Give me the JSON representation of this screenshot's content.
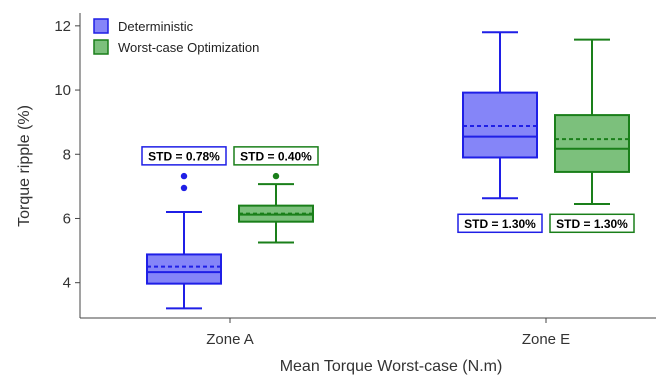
{
  "chart_data": {
    "type": "box",
    "title": "",
    "xlabel": "Mean Torque Worst-case (N.m)",
    "ylabel": "Torque ripple (%)",
    "ylim": [
      2.9,
      12.4
    ],
    "yticks": [
      4,
      6,
      8,
      10,
      12
    ],
    "categories": [
      "Zone A",
      "Zone E"
    ],
    "grid": false,
    "legend_position": "top-left",
    "series": [
      {
        "name": "Deterministic",
        "color": "#1f1fe6",
        "fill": "#8585f8",
        "boxes": [
          {
            "min": 3.2,
            "q1": 3.97,
            "median": 4.33,
            "mean": 4.5,
            "q3": 4.88,
            "max": 6.2,
            "outliers": [
              6.95,
              7.32
            ],
            "std_label": "STD = 0.78%"
          },
          {
            "min": 6.63,
            "q1": 7.9,
            "median": 8.55,
            "mean": 8.88,
            "q3": 9.92,
            "max": 11.8,
            "outliers": [],
            "std_label": "STD = 1.30%"
          }
        ]
      },
      {
        "name": "Worst-case Optimization",
        "color": "#1a7f1a",
        "fill": "#7cc07c",
        "boxes": [
          {
            "min": 5.25,
            "q1": 5.9,
            "median": 6.12,
            "mean": 6.15,
            "q3": 6.4,
            "max": 7.07,
            "outliers": [
              7.32
            ],
            "std_label": "STD = 0.40%"
          },
          {
            "min": 6.45,
            "q1": 7.45,
            "median": 8.17,
            "mean": 8.47,
            "q3": 9.22,
            "max": 11.57,
            "outliers": [],
            "std_label": "STD = 1.30%"
          }
        ]
      }
    ]
  }
}
